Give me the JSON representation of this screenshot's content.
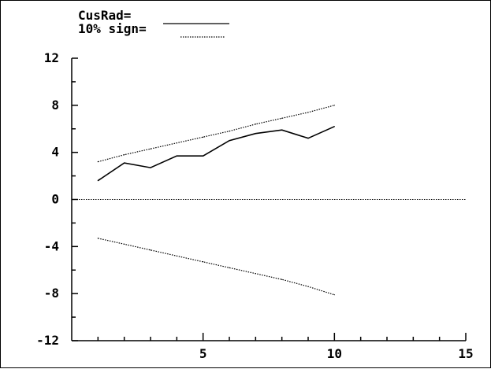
{
  "chart_data": {
    "type": "line",
    "legend": [
      {
        "label": "CusRad=",
        "style": "solid"
      },
      {
        "label": "10% sign=",
        "style": "dotted"
      }
    ],
    "x": [
      1,
      2,
      3,
      4,
      5,
      6,
      7,
      8,
      9,
      10
    ],
    "series": [
      {
        "name": "CusRad",
        "style": "solid",
        "values": [
          1.6,
          3.1,
          2.7,
          3.7,
          3.7,
          5.0,
          5.6,
          5.9,
          5.2,
          6.2
        ]
      },
      {
        "name": "10% sign",
        "style": "dotted",
        "values": [
          3.2,
          3.8,
          4.3,
          4.8,
          5.3,
          5.8,
          6.4,
          6.9,
          7.4,
          8.0
        ]
      },
      {
        "name": "10% sign",
        "style": "dotted",
        "values": [
          -3.3,
          -3.8,
          -4.3,
          -4.8,
          -5.3,
          -5.8,
          -6.3,
          -6.8,
          -7.4,
          -8.1
        ]
      }
    ],
    "zero_line": {
      "y": 0,
      "style": "dotted"
    },
    "xlim": [
      0,
      15
    ],
    "ylim": [
      -12,
      12
    ],
    "x_ticks_labeled": [
      5,
      10,
      15
    ],
    "x_ticks_minor": [
      1,
      2,
      3,
      4,
      6,
      7,
      8,
      9,
      11,
      12,
      13,
      14
    ],
    "y_ticks_labeled": [
      12,
      8,
      4,
      0,
      -4,
      -8,
      -12
    ],
    "y_ticks_minor": [
      10,
      6,
      2,
      -2,
      -6,
      -10
    ],
    "grid": false,
    "colors": {
      "line": "#000000",
      "background": "#ffffff"
    }
  }
}
